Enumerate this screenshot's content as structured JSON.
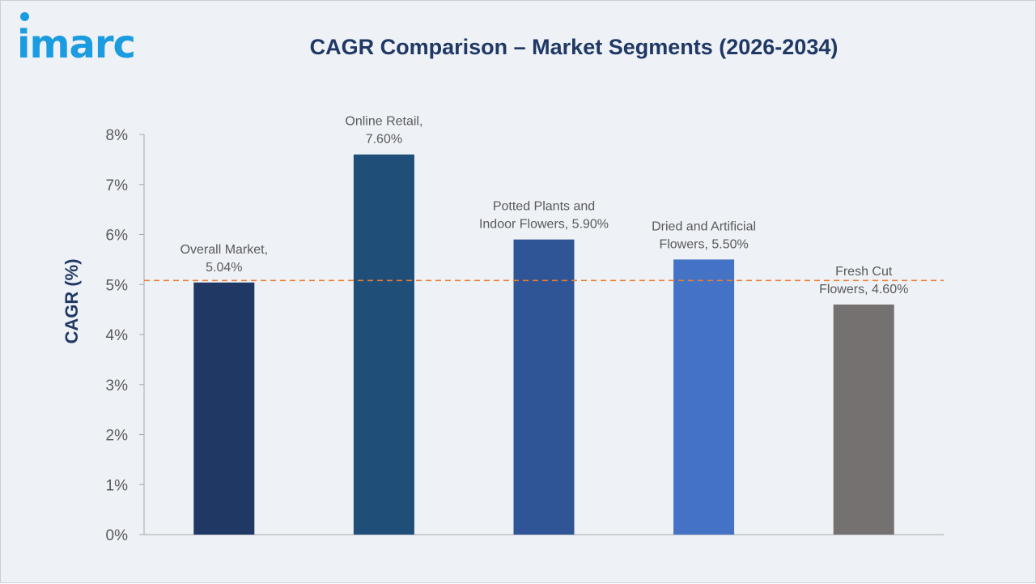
{
  "brand": {
    "logo_text": "imarc",
    "color": "#1b9be0"
  },
  "chart_data": {
    "type": "bar",
    "title": "CAGR Comparison – Market Segments (2026-2034)",
    "xlabel": "",
    "ylabel": "CAGR (%)",
    "ylim": [
      0,
      8
    ],
    "yticks": [
      "0%",
      "1%",
      "2%",
      "3%",
      "4%",
      "5%",
      "6%",
      "7%",
      "8%"
    ],
    "categories": [
      "Overall Market",
      "Online Retail",
      "Potted Plants and Indoor Flowers",
      "Dried and Artificial Flowers",
      "Fresh Cut Flowers"
    ],
    "values": [
      5.04,
      7.6,
      5.9,
      5.5,
      4.6
    ],
    "data_labels": [
      [
        "Overall Market,",
        "5.04%"
      ],
      [
        "Online Retail,",
        "7.60%"
      ],
      [
        "Potted Plants and",
        "Indoor Flowers, 5.90%"
      ],
      [
        "Dried and Artificial",
        "Flowers, 5.50%"
      ],
      [
        "Fresh Cut",
        "Flowers, 4.60%"
      ]
    ],
    "bar_colors": [
      "#203864",
      "#1f4e79",
      "#2f5597",
      "#4472c4",
      "#767171"
    ],
    "reference_line": {
      "value": 5.08,
      "style": "dashed",
      "color": "#ed7d31"
    },
    "grid": false,
    "legend": "none"
  }
}
